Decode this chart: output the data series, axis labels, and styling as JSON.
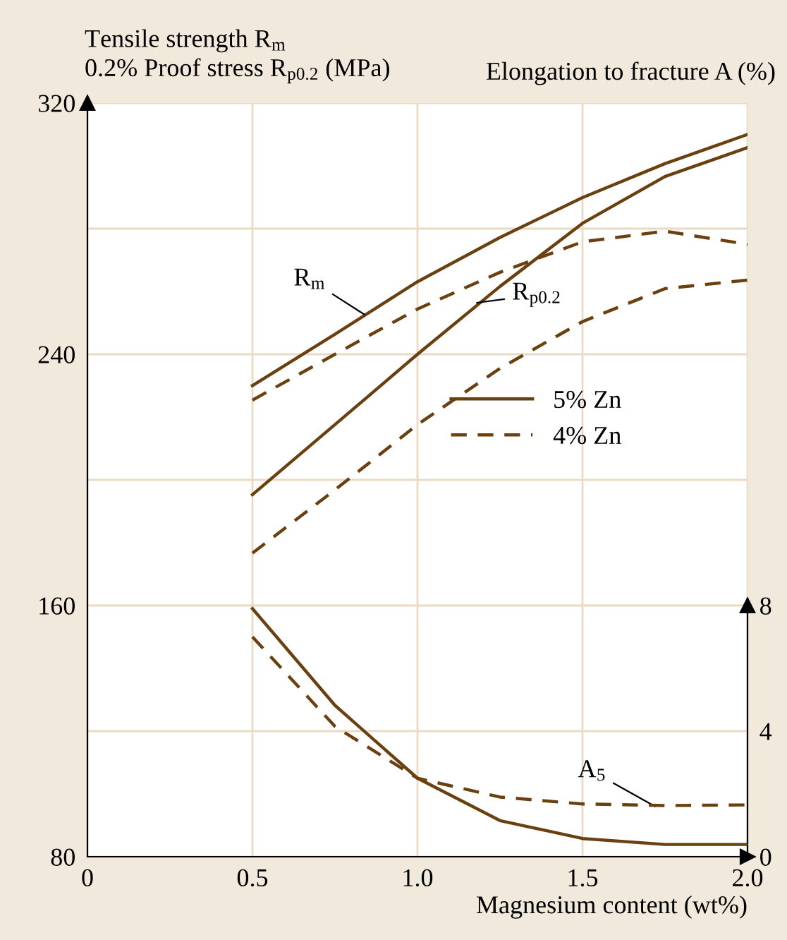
{
  "chart_data": {
    "type": "line",
    "ylabel": "Tensile strength R$_{m}$\n0.2% Proof stress R$_{p0.2}$ (MPa)",
    "y2label": "Elongation to fracture A (%)",
    "xlabel": "Magnesium content (wt%)",
    "xlim": [
      0,
      2.0
    ],
    "xticks": [
      0,
      0.5,
      {
        "value": 1,
        "label": "1.0"
      },
      1.5,
      {
        "value": 2,
        "label": "2.0"
      }
    ],
    "ylim": [
      80,
      320
    ],
    "yticks": [
      80,
      160,
      240,
      320
    ],
    "y2lim": [
      0,
      24
    ],
    "y2ticks": [
      0,
      4,
      8
    ],
    "grid": true,
    "legend": "center",
    "series": [
      {
        "name": "5% Zn",
        "color": "#6b4010",
        "line_style": "solid",
        "x": [
          0.5,
          0.75,
          1.0,
          1.25,
          1.5,
          1.75,
          2.0
        ],
        "values": [
          230.0,
          246.4,
          263.1,
          277.2,
          289.9,
          300.7,
          310.0
        ]
      },
      {
        "name": "4% Zn",
        "color": "#6b4010",
        "line_style": "dashed",
        "x": [
          0.5,
          0.75,
          1.0,
          1.25,
          1.5,
          1.75,
          2.0
        ],
        "values": [
          225.4,
          240.0,
          254.4,
          266.1,
          275.8,
          279.2,
          275.0
        ]
      },
      {
        "color": "#6b4010",
        "line_style": "solid",
        "x": [
          0.5,
          0.75,
          1.0,
          1.25,
          1.5,
          1.75,
          2.0
        ],
        "values": [
          195.3,
          217.6,
          240.0,
          261.6,
          281.7,
          296.6,
          305.8
        ]
      },
      {
        "color": "#6b4010",
        "line_style": "dashed",
        "x": [
          0.5,
          0.75,
          1.0,
          1.25,
          1.5,
          1.75,
          2.0
        ],
        "values": [
          176.7,
          196.8,
          217.6,
          235.5,
          250.4,
          260.9,
          263.6
        ]
      },
      {
        "color": "#6b4010",
        "line_style": "solid",
        "axis": "y2",
        "x": [
          0.5,
          0.75,
          1.0,
          1.25,
          1.5,
          1.75,
          2.0
        ],
        "values": [
          7.9,
          4.82,
          2.5,
          1.15,
          0.58,
          0.39,
          0.39
        ]
      },
      {
        "color": "#6b4010",
        "line_style": "dashed",
        "axis": "y2",
        "x": [
          0.5,
          0.75,
          1.0,
          1.25,
          1.5,
          1.75,
          2.0
        ],
        "values": [
          7.0,
          4.15,
          2.5,
          1.9,
          1.68,
          1.63,
          1.65
        ]
      }
    ],
    "annotations": [
      {
        "text": "R$_{m}$",
        "x": 0.84,
        "y": 252.6
      },
      {
        "text": "R$_{p0.2}$",
        "x": 1.18,
        "y": 256.4
      },
      {
        "text": "A$_{5}$",
        "x": 1.72,
        "y": 96
      }
    ]
  }
}
